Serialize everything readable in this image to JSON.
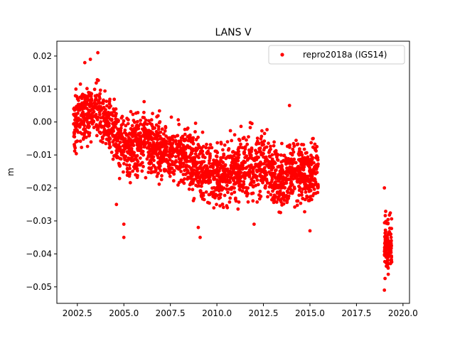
{
  "chart_data": {
    "type": "scatter",
    "title": "LANS V",
    "xlabel": "",
    "ylabel": "m",
    "xlim": [
      2001.4,
      2020.35
    ],
    "ylim": [
      -0.055,
      0.0245
    ],
    "x_ticks": [
      2002.5,
      2005.0,
      2007.5,
      2010.0,
      2012.5,
      2015.0,
      2017.5,
      2020.0
    ],
    "x_tick_labels": [
      "2002.5",
      "2005.0",
      "2007.5",
      "2010.0",
      "2012.5",
      "2015.0",
      "2017.5",
      "2020.0"
    ],
    "y_ticks": [
      0.02,
      0.01,
      0.0,
      -0.01,
      -0.02,
      -0.03,
      -0.04,
      -0.05
    ],
    "y_tick_labels": [
      "0.02",
      "0.01",
      "0.00",
      "−0.01",
      "−0.02",
      "−0.03",
      "−0.04",
      "−0.05"
    ],
    "grid": false,
    "legend_position": "top-right",
    "series": [
      {
        "name": "repro2018a (IGS14)",
        "color": "#ff0000",
        "marker": "circle",
        "segments": [
          {
            "x_start": 2002.3,
            "x_end": 2015.45
          },
          {
            "x_start": 2019.0,
            "x_end": 2019.4
          }
        ],
        "trend_points": [
          {
            "x": 2002.3,
            "y": 0.0
          },
          {
            "x": 2003.0,
            "y": 0.002
          },
          {
            "x": 2003.6,
            "y": 0.004
          },
          {
            "x": 2004.0,
            "y": 0.0
          },
          {
            "x": 2004.5,
            "y": -0.004
          },
          {
            "x": 2005.0,
            "y": -0.008
          },
          {
            "x": 2006.0,
            "y": -0.006
          },
          {
            "x": 2007.0,
            "y": -0.008
          },
          {
            "x": 2008.0,
            "y": -0.01
          },
          {
            "x": 2009.0,
            "y": -0.014
          },
          {
            "x": 2010.0,
            "y": -0.016
          },
          {
            "x": 2011.0,
            "y": -0.015
          },
          {
            "x": 2012.0,
            "y": -0.013
          },
          {
            "x": 2012.5,
            "y": -0.012
          },
          {
            "x": 2013.5,
            "y": -0.018
          },
          {
            "x": 2014.0,
            "y": -0.014
          },
          {
            "x": 2015.0,
            "y": -0.016
          },
          {
            "x": 2015.45,
            "y": -0.015
          },
          {
            "x": 2019.0,
            "y": -0.037
          },
          {
            "x": 2019.4,
            "y": -0.038
          }
        ],
        "outliers": [
          {
            "x": 2003.6,
            "y": 0.021
          },
          {
            "x": 2003.2,
            "y": 0.019
          },
          {
            "x": 2002.9,
            "y": 0.018
          },
          {
            "x": 2005.0,
            "y": -0.035
          },
          {
            "x": 2005.0,
            "y": -0.031
          },
          {
            "x": 2004.6,
            "y": -0.025
          },
          {
            "x": 2009.1,
            "y": -0.035
          },
          {
            "x": 2009.0,
            "y": -0.032
          },
          {
            "x": 2012.0,
            "y": -0.031
          },
          {
            "x": 2015.0,
            "y": -0.033
          },
          {
            "x": 2013.9,
            "y": 0.005
          },
          {
            "x": 2019.0,
            "y": -0.02
          },
          {
            "x": 2019.0,
            "y": -0.051
          }
        ]
      }
    ]
  }
}
